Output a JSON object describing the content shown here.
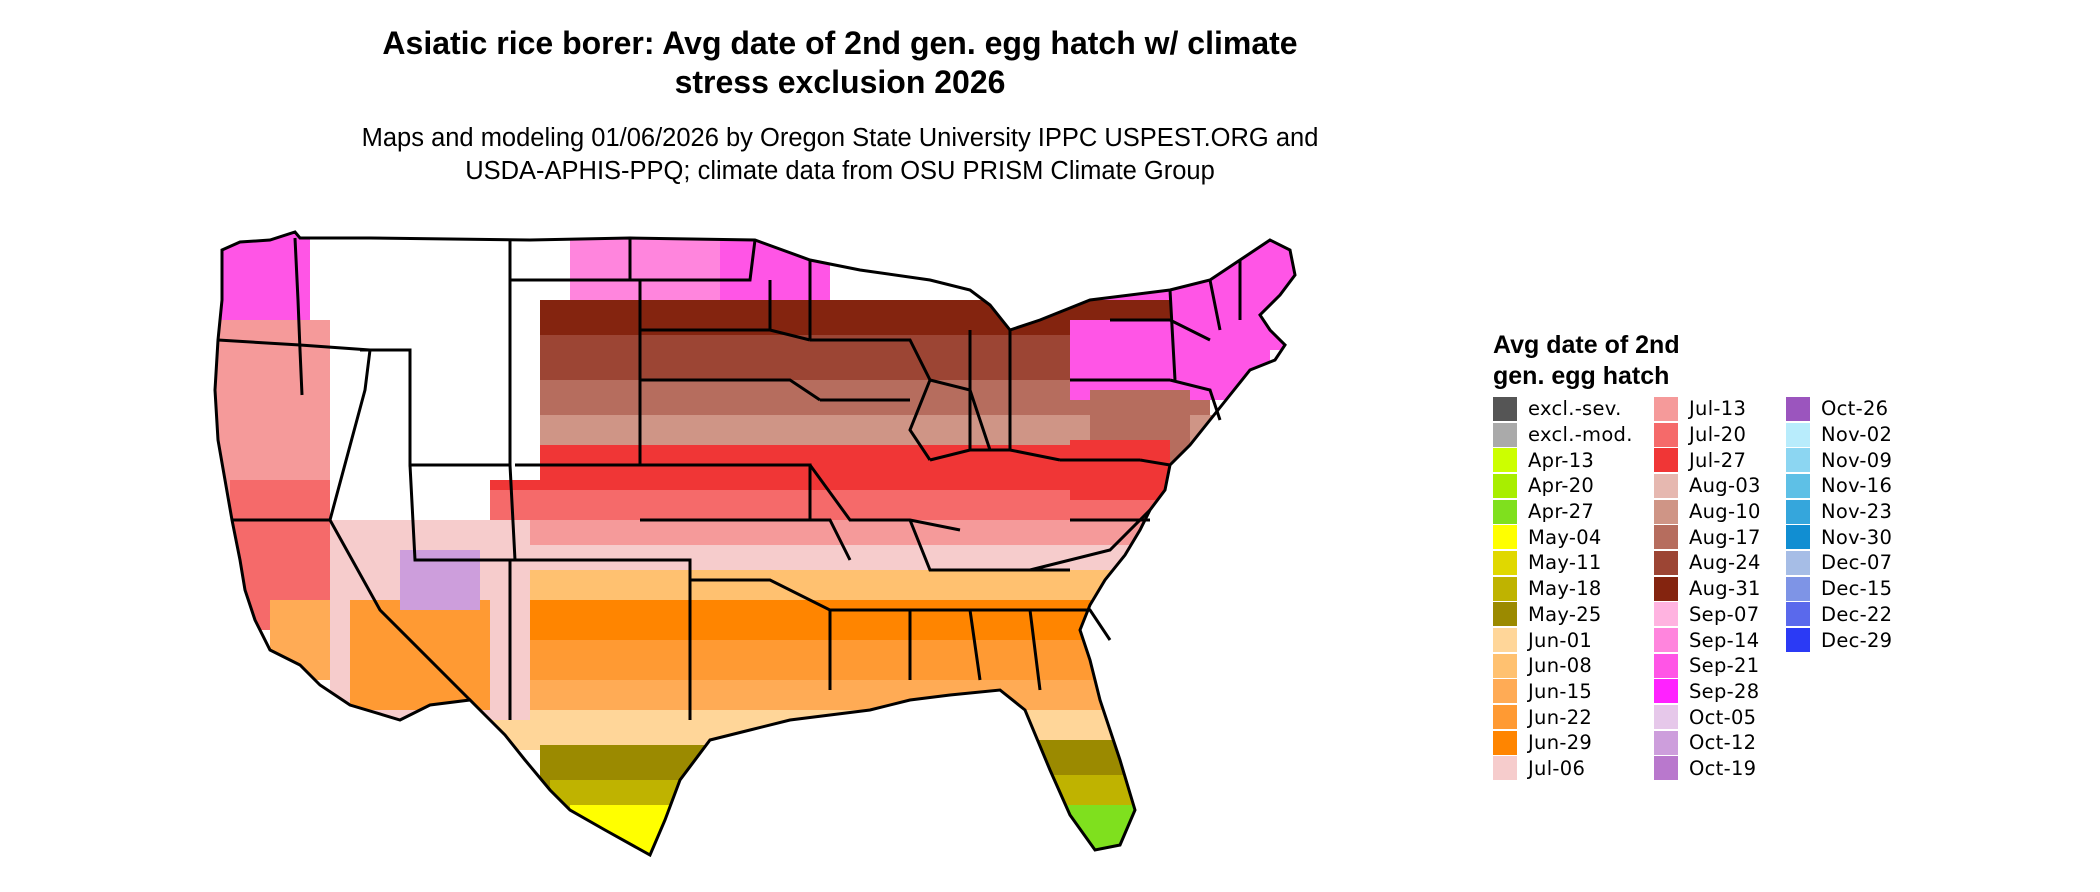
{
  "title": {
    "line1": "Asiatic rice borer: Avg date of 2nd gen. egg hatch w/ climate",
    "line2": "stress exclusion 2026"
  },
  "subtitle": {
    "line1": "Maps and modeling 01/06/2026 by Oregon State University IPPC USPEST.ORG and",
    "line2": "USDA-APHIS-PPQ; climate data from OSU PRISM Climate Group"
  },
  "legend": {
    "title_line1": "Avg date of 2nd",
    "title_line2": "gen. egg hatch",
    "columns": [
      [
        {
          "label": "excl.-sev.",
          "color": "#555555"
        },
        {
          "label": "excl.-mod.",
          "color": "#aaaaaa"
        },
        {
          "label": "Apr-13",
          "color": "#ccff00"
        },
        {
          "label": "Apr-20",
          "color": "#a8ee00"
        },
        {
          "label": "Apr-27",
          "color": "#7fe01e"
        },
        {
          "label": "May-04",
          "color": "#ffff00"
        },
        {
          "label": "May-11",
          "color": "#e0d800"
        },
        {
          "label": "May-18",
          "color": "#bfb300"
        },
        {
          "label": "May-25",
          "color": "#9b8a00"
        },
        {
          "label": "Jun-01",
          "color": "#ffd699"
        },
        {
          "label": "Jun-08",
          "color": "#ffc170"
        },
        {
          "label": "Jun-15",
          "color": "#ffab55"
        },
        {
          "label": "Jun-22",
          "color": "#ff9a33"
        },
        {
          "label": "Jun-29",
          "color": "#ff8500"
        },
        {
          "label": "Jul-06",
          "color": "#f6cccc"
        }
      ],
      [
        {
          "label": "Jul-13",
          "color": "#f59a9a"
        },
        {
          "label": "Jul-20",
          "color": "#f56a6a"
        },
        {
          "label": "Jul-27",
          "color": "#f03636"
        },
        {
          "label": "Aug-03",
          "color": "#e6b8b0"
        },
        {
          "label": "Aug-10",
          "color": "#cf9586"
        },
        {
          "label": "Aug-17",
          "color": "#b66d5e"
        },
        {
          "label": "Aug-24",
          "color": "#9c4534"
        },
        {
          "label": "Aug-31",
          "color": "#84240f"
        },
        {
          "label": "Sep-07",
          "color": "#ffb3e0"
        },
        {
          "label": "Sep-14",
          "color": "#ff85dd"
        },
        {
          "label": "Sep-21",
          "color": "#ff55e6"
        },
        {
          "label": "Sep-28",
          "color": "#ff22ff"
        },
        {
          "label": "Oct-05",
          "color": "#e6c8ea"
        },
        {
          "label": "Oct-12",
          "color": "#cd9edc"
        },
        {
          "label": "Oct-19",
          "color": "#b978cd"
        }
      ],
      [
        {
          "label": "Oct-26",
          "color": "#9b55be"
        },
        {
          "label": "Nov-02",
          "color": "#b8ecfc"
        },
        {
          "label": "Nov-09",
          "color": "#8cd6f2"
        },
        {
          "label": "Nov-16",
          "color": "#5ec0e6"
        },
        {
          "label": "Nov-23",
          "color": "#35a6dc"
        },
        {
          "label": "Nov-30",
          "color": "#118ed2"
        },
        {
          "label": "Dec-07",
          "color": "#a6bde6"
        },
        {
          "label": "Dec-15",
          "color": "#7e94e6"
        },
        {
          "label": "Dec-22",
          "color": "#5a69ec"
        },
        {
          "label": "Dec-29",
          "color": "#2b3af5"
        }
      ]
    ]
  },
  "map_colors": {
    "state_border": "#000000",
    "excluded_background": "#ffffff"
  }
}
